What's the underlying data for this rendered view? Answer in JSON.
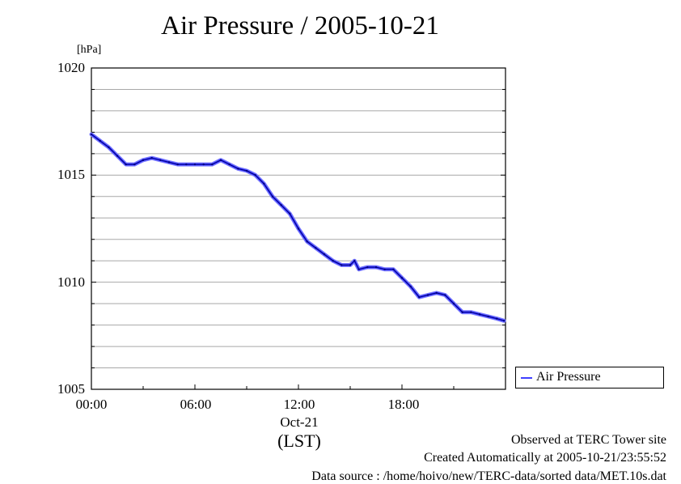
{
  "title": "Air Pressure / 2005-10-21",
  "chart_data": {
    "type": "line",
    "title": "Air Pressure / 2005-10-21",
    "ylabel_unit": "[hPa]",
    "xlabel": "(LST)",
    "x_date_label": "Oct-21",
    "ylim": [
      1005,
      1020
    ],
    "xlim": [
      "00:00",
      "24:00"
    ],
    "y_ticks": [
      "1020",
      "1015",
      "1010",
      "1005"
    ],
    "x_ticks": [
      "00:00",
      "06:00",
      "12:00",
      "18:00"
    ],
    "grid": true,
    "legend_position": "bottom-right outside",
    "series": [
      {
        "name": "Air Pressure",
        "color": "#3333ff",
        "x": [
          "00:00",
          "00:30",
          "01:00",
          "01:30",
          "02:00",
          "02:30",
          "03:00",
          "03:30",
          "04:00",
          "04:30",
          "05:00",
          "05:30",
          "06:00",
          "06:30",
          "07:00",
          "07:30",
          "08:00",
          "08:30",
          "09:00",
          "09:30",
          "10:00",
          "10:30",
          "11:00",
          "11:30",
          "12:00",
          "12:30",
          "13:00",
          "13:30",
          "14:00",
          "14:30",
          "15:00",
          "15:15",
          "15:30",
          "16:00",
          "16:30",
          "17:00",
          "17:30",
          "18:00",
          "18:30",
          "19:00",
          "19:30",
          "20:00",
          "20:30",
          "21:00",
          "21:30",
          "22:00",
          "22:30",
          "23:00",
          "23:30",
          "23:55"
        ],
        "values": [
          1016.9,
          1016.6,
          1016.3,
          1015.9,
          1015.5,
          1015.5,
          1015.7,
          1015.8,
          1015.7,
          1015.6,
          1015.5,
          1015.5,
          1015.5,
          1015.5,
          1015.5,
          1015.7,
          1015.5,
          1015.3,
          1015.2,
          1015.0,
          1014.6,
          1014.0,
          1013.6,
          1013.2,
          1012.5,
          1011.9,
          1011.6,
          1011.3,
          1011.0,
          1010.8,
          1010.8,
          1011.0,
          1010.6,
          1010.7,
          1010.7,
          1010.6,
          1010.6,
          1010.2,
          1009.8,
          1009.3,
          1009.4,
          1009.5,
          1009.4,
          1009.0,
          1008.6,
          1008.6,
          1008.5,
          1008.4,
          1008.3,
          1008.2
        ]
      }
    ]
  },
  "legend": {
    "label": "Air Pressure"
  },
  "footer": {
    "site": "Observed at TERC Tower site",
    "created": "Created Automatically at 2005-10-21/23:55:52",
    "source": "Data source : /home/hoivo/new/TERC-data/sorted  data/MET.10s.dat"
  }
}
